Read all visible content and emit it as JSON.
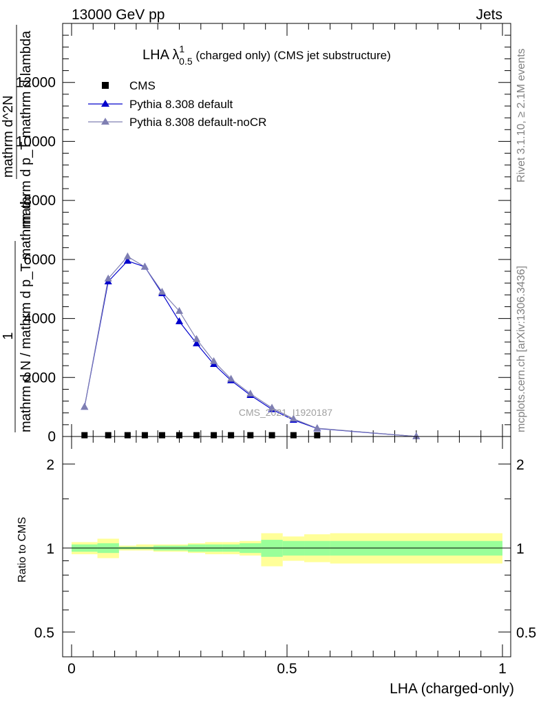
{
  "header": {
    "left": "13000 GeV pp",
    "right": "Jets"
  },
  "side_labels": {
    "rivet": "Rivet 3.1.10, ≥ 2.1M events",
    "mcplots": "mcplots.cern.ch [arXiv:1306.3436]"
  },
  "chart_data": [
    {
      "type": "line",
      "title": "LHA λ⁰₅¹ (charged only) (CMS jet substructure)",
      "title_main": "LHA λ",
      "title_sup": "1",
      "title_sub": "0.5",
      "title_rest": " (charged only) (CMS jet substructure)",
      "watermark": "CMS_2021_I1920187",
      "ylabel_lines": [
        "1",
        "mathrm d N / mathrm d p_T mathrm d",
        "mathrm d^2N",
        "mathrm d p_T mathrm d lambda"
      ],
      "ylabel_frac_num": "1",
      "ylabel_frac_den": "mathrm d N / mathrm d p_T mathrm d",
      "ylabel_right_num": "mathrm d^2N",
      "ylabel_right_den": "mathrm d p_T mathrm d lambda",
      "xlim": [
        0,
        1
      ],
      "ylim": [
        0,
        14000
      ],
      "yticks": [
        0,
        2000,
        4000,
        6000,
        8000,
        10000,
        12000
      ],
      "ytick_labels": [
        "0",
        "2000",
        "4000",
        "6000",
        "8000",
        "10000",
        "12000"
      ],
      "legend_position": "top-left",
      "series": [
        {
          "name": "CMS",
          "marker": "square",
          "color": "#000000",
          "x": [
            0.03,
            0.085,
            0.13,
            0.17,
            0.21,
            0.25,
            0.29,
            0.33,
            0.37,
            0.415,
            0.465,
            0.515,
            0.57
          ],
          "y": [
            20,
            20,
            20,
            20,
            20,
            20,
            20,
            20,
            20,
            20,
            20,
            20,
            20
          ]
        },
        {
          "name": "Pythia 8.308 default",
          "marker": "triangle",
          "color": "#0000cc",
          "x": [
            0.03,
            0.085,
            0.13,
            0.17,
            0.21,
            0.25,
            0.29,
            0.33,
            0.37,
            0.415,
            0.465,
            0.515,
            0.57,
            0.8
          ],
          "y": [
            1000,
            5250,
            5950,
            5750,
            4850,
            3900,
            3150,
            2450,
            1900,
            1400,
            920,
            560,
            270,
            0
          ]
        },
        {
          "name": "Pythia 8.308 default-noCR",
          "marker": "triangle",
          "color": "#7f7fb2",
          "x": [
            0.03,
            0.085,
            0.13,
            0.17,
            0.21,
            0.25,
            0.29,
            0.33,
            0.37,
            0.415,
            0.465,
            0.515,
            0.57,
            0.8
          ],
          "y": [
            1000,
            5350,
            6100,
            5750,
            4900,
            4250,
            3300,
            2550,
            1950,
            1450,
            970,
            600,
            280,
            0
          ]
        }
      ]
    },
    {
      "type": "area",
      "ylabel": "Ratio to CMS",
      "xlabel": "LHA (charged-only)",
      "xlim": [
        0,
        1
      ],
      "ylim": [
        0.4,
        2.3
      ],
      "log_y": true,
      "xticks": [
        0,
        0.5,
        1
      ],
      "xtick_labels": [
        "0",
        "0.5",
        "1"
      ],
      "yticks": [
        0.5,
        1,
        2
      ],
      "ytick_labels": [
        "0.5",
        "1",
        "2"
      ],
      "band_colors": {
        "stat": "#99ff99",
        "syst": "#ffff99"
      },
      "bins": [
        {
          "lo": 0.0,
          "hi": 0.06,
          "stat": [
            0.97,
            1.03
          ],
          "syst": [
            0.95,
            1.05
          ]
        },
        {
          "lo": 0.06,
          "hi": 0.11,
          "stat": [
            0.96,
            1.04
          ],
          "syst": [
            0.92,
            1.08
          ]
        },
        {
          "lo": 0.11,
          "hi": 0.15,
          "stat": [
            0.99,
            1.01
          ],
          "syst": [
            0.98,
            1.02
          ]
        },
        {
          "lo": 0.15,
          "hi": 0.19,
          "stat": [
            0.99,
            1.01
          ],
          "syst": [
            0.98,
            1.03
          ]
        },
        {
          "lo": 0.19,
          "hi": 0.23,
          "stat": [
            0.98,
            1.02
          ],
          "syst": [
            0.97,
            1.03
          ]
        },
        {
          "lo": 0.23,
          "hi": 0.27,
          "stat": [
            0.98,
            1.02
          ],
          "syst": [
            0.97,
            1.03
          ]
        },
        {
          "lo": 0.27,
          "hi": 0.31,
          "stat": [
            0.97,
            1.03
          ],
          "syst": [
            0.96,
            1.04
          ]
        },
        {
          "lo": 0.31,
          "hi": 0.35,
          "stat": [
            0.97,
            1.03
          ],
          "syst": [
            0.95,
            1.05
          ]
        },
        {
          "lo": 0.35,
          "hi": 0.39,
          "stat": [
            0.97,
            1.03
          ],
          "syst": [
            0.95,
            1.05
          ]
        },
        {
          "lo": 0.39,
          "hi": 0.44,
          "stat": [
            0.96,
            1.04
          ],
          "syst": [
            0.94,
            1.06
          ]
        },
        {
          "lo": 0.44,
          "hi": 0.49,
          "stat": [
            0.93,
            1.07
          ],
          "syst": [
            0.86,
            1.13
          ]
        },
        {
          "lo": 0.49,
          "hi": 0.54,
          "stat": [
            0.94,
            1.06
          ],
          "syst": [
            0.9,
            1.1
          ]
        },
        {
          "lo": 0.54,
          "hi": 0.6,
          "stat": [
            0.94,
            1.06
          ],
          "syst": [
            0.89,
            1.12
          ]
        },
        {
          "lo": 0.6,
          "hi": 1.0,
          "stat": [
            0.94,
            1.06
          ],
          "syst": [
            0.88,
            1.13
          ]
        }
      ],
      "series": [
        {
          "name": "Pythia 8.308 default",
          "color": "#0000cc"
        },
        {
          "name": "Pythia 8.308 default-noCR",
          "color": "#7f7fb2"
        }
      ]
    }
  ]
}
